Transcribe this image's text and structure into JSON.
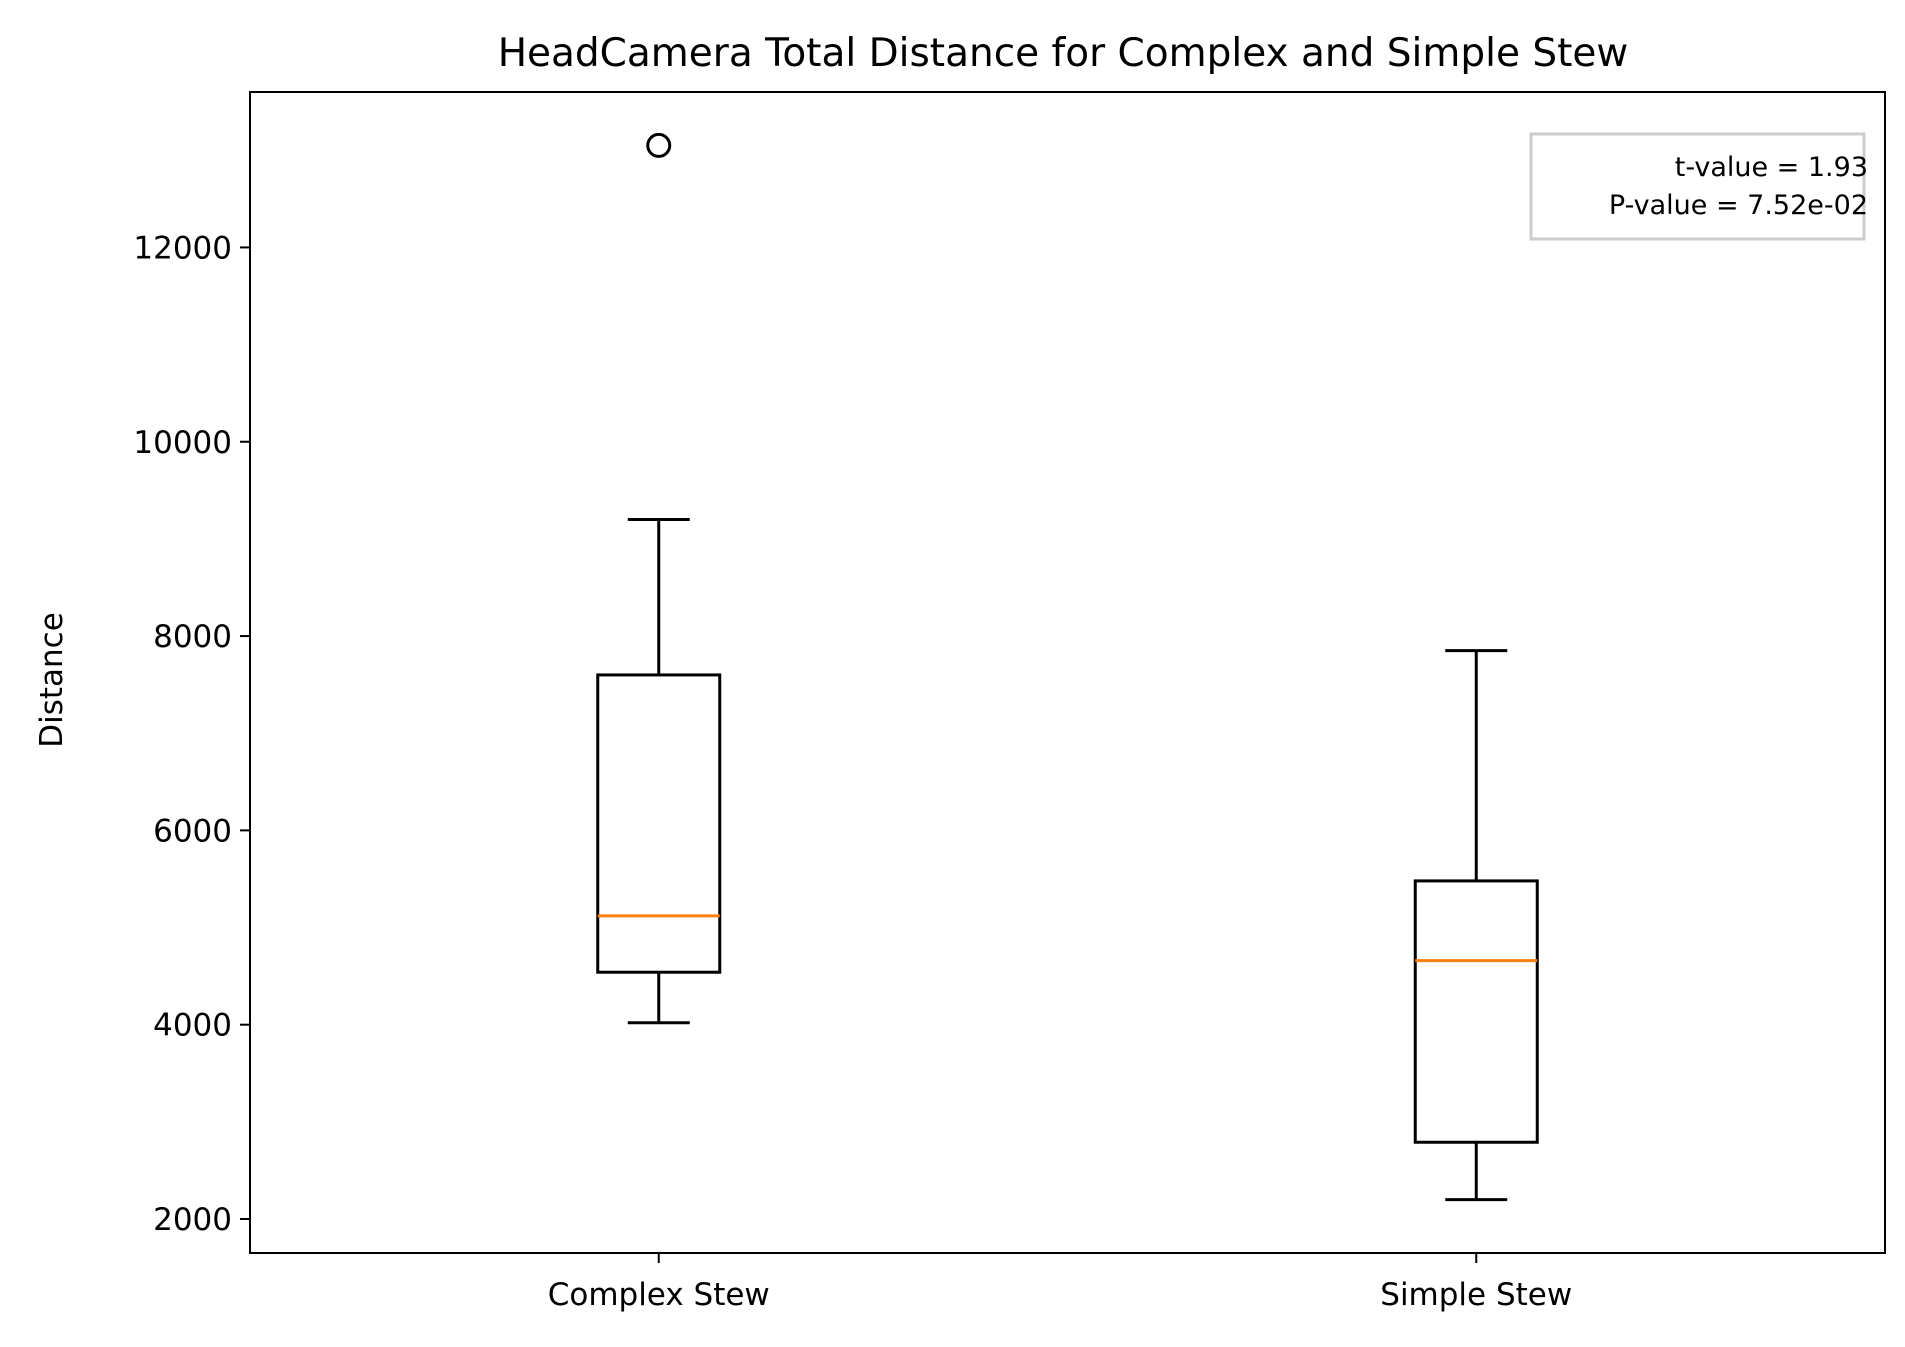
{
  "chart_data": {
    "type": "boxplot",
    "title": "HeadCamera Total Distance for Complex and Simple Stew",
    "xlabel": "",
    "ylabel": "Distance",
    "categories": [
      "Complex Stew",
      "Simple Stew"
    ],
    "ylim": [
      1650,
      13600
    ],
    "yticks": [
      2000,
      4000,
      6000,
      8000,
      10000,
      12000
    ],
    "grid": false,
    "boxes": [
      {
        "label": "Complex Stew",
        "whisker_low": 4020,
        "q1": 4540,
        "median": 5120,
        "q3": 7600,
        "whisker_high": 9200,
        "outliers": [
          13050
        ]
      },
      {
        "label": "Simple Stew",
        "whisker_low": 2200,
        "q1": 2790,
        "median": 4660,
        "q3": 5480,
        "whisker_high": 7850,
        "outliers": []
      }
    ],
    "annotation": {
      "lines": [
        "t-value = 1.93",
        "P-value = 7.52e-02"
      ],
      "placement": "top-right"
    },
    "colors": {
      "box": "#000000",
      "median": "#ff7f0e",
      "annotation_border": "#cccccc"
    }
  }
}
